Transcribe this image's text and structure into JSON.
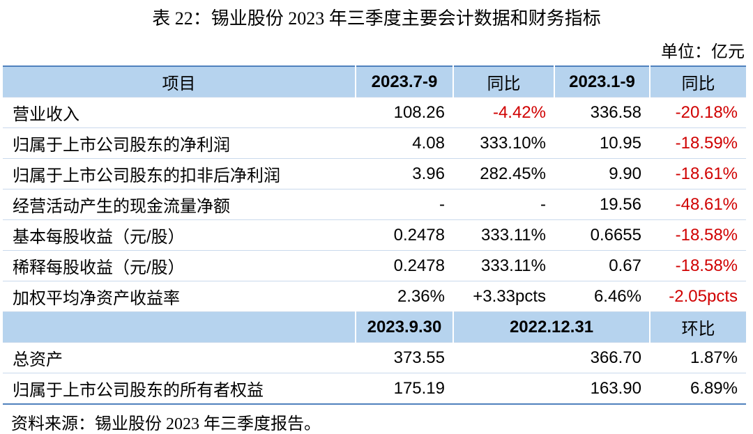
{
  "title": "表 22：锡业股份 2023 年三季度主要会计数据和财务指标",
  "unit": "单位：亿元",
  "table": {
    "header": [
      "项目",
      "2023.7-9",
      "同比",
      "2023.1-9",
      "同比"
    ],
    "rows": [
      [
        "营业收入",
        "108.26",
        "-4.42%",
        "336.58",
        "-20.18%"
      ],
      [
        "归属于上市公司股东的净利润",
        "4.08",
        "333.10%",
        "10.95",
        "-18.59%"
      ],
      [
        "归属于上市公司股东的扣非后净利润",
        "3.96",
        "282.45%",
        "9.90",
        "-18.61%"
      ],
      [
        "经营活动产生的现金流量净额",
        "-",
        "-",
        "19.56",
        "-48.61%"
      ],
      [
        "基本每股收益（元/股）",
        "0.2478",
        "333.11%",
        "0.6655",
        "-18.58%"
      ],
      [
        "稀释每股收益（元/股）",
        "0.2478",
        "333.11%",
        "0.67",
        "-18.58%"
      ],
      [
        "加权平均净资产收益率",
        "2.36%",
        "+3.33pcts",
        "6.46%",
        "-2.05pcts"
      ]
    ],
    "header2": [
      "2023.9.30",
      "2022.12.31",
      "环比"
    ],
    "rows2": [
      [
        "总资产",
        "373.55",
        "366.70",
        "1.87%"
      ],
      [
        "归属于上市公司股东的所有者权益",
        "175.19",
        "163.90",
        "6.89%"
      ]
    ]
  },
  "source": "资料来源：锡业股份 2023 年三季度报告。"
}
